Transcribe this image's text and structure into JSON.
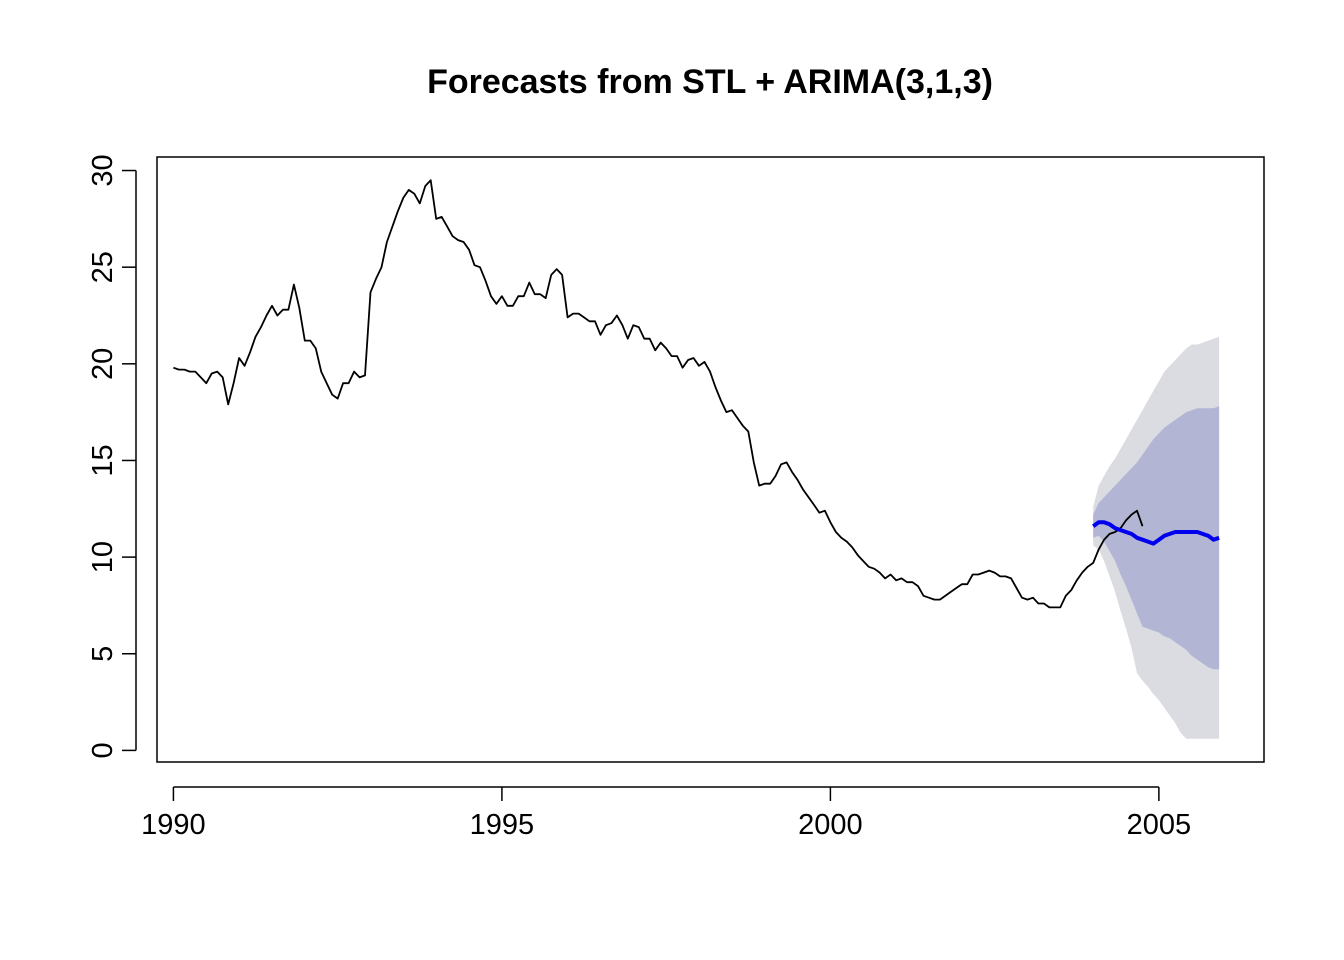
{
  "chart_data": {
    "type": "line",
    "title": "Forecasts from STL +  ARIMA(3,1,3)",
    "xlabel": "",
    "ylabel": "",
    "xlim": [
      1989.75,
      2006.6
    ],
    "ylim": [
      -0.6,
      30.7
    ],
    "x_ticks": [
      1990,
      1995,
      2000,
      2005
    ],
    "y_ticks": [
      0,
      5,
      10,
      15,
      20,
      25,
      30
    ],
    "grid": false,
    "start": 1990.0,
    "frequency": 12,
    "series": [
      {
        "values": [
          19.8,
          19.7,
          19.7,
          19.6,
          19.6,
          19.3,
          19.0,
          19.5,
          19.6,
          19.3,
          17.9,
          19.0,
          20.3,
          19.9,
          20.6,
          21.4,
          21.9,
          22.5,
          23.0,
          22.5,
          22.8,
          22.8,
          24.1,
          22.9,
          21.2,
          21.2,
          20.8,
          19.6,
          19.0,
          18.4,
          18.2,
          19.0,
          19.0,
          19.6,
          19.3,
          19.4,
          23.7,
          24.4,
          25.0,
          26.3,
          27.1,
          27.9,
          28.6,
          29.0,
          28.8,
          28.3,
          29.2,
          29.5,
          27.5,
          27.6,
          27.1,
          26.6,
          26.4,
          26.3,
          25.9,
          25.1,
          25.0,
          24.3,
          23.5,
          23.1,
          23.5,
          23.0,
          23.0,
          23.5,
          23.5,
          24.2,
          23.6,
          23.6,
          23.4,
          24.6,
          24.9,
          24.6,
          22.4,
          22.6,
          22.6,
          22.4,
          22.2,
          22.2,
          21.5,
          22.0,
          22.1,
          22.5,
          22.0,
          21.3,
          22.0,
          21.9,
          21.3,
          21.3,
          20.7,
          21.1,
          20.8,
          20.4,
          20.4,
          19.8,
          20.2,
          20.3,
          19.9,
          20.1,
          19.6,
          18.8,
          18.1,
          17.5,
          17.6,
          17.2,
          16.8,
          16.5,
          14.9,
          13.7,
          13.8,
          13.8,
          14.2,
          14.8,
          14.9,
          14.4,
          14.0,
          13.5,
          13.1,
          12.7,
          12.3,
          12.4,
          11.8,
          11.3,
          11.0,
          10.8,
          10.5,
          10.1,
          9.8,
          9.5,
          9.4,
          9.2,
          8.9,
          9.1,
          8.8,
          8.9,
          8.7,
          8.7,
          8.5,
          8.0,
          7.9,
          7.8,
          7.8,
          8.0,
          8.2,
          8.4,
          8.6,
          8.6,
          9.1,
          9.1,
          9.2,
          9.3,
          9.2,
          9.0,
          9.0,
          8.9,
          8.4,
          7.9,
          7.8,
          7.9,
          7.6,
          7.6,
          7.4,
          7.4,
          7.4,
          8.0,
          8.3,
          8.8,
          9.2,
          9.5,
          9.7,
          10.4,
          10.9,
          11.2,
          11.3,
          11.5,
          11.9,
          12.2,
          12.4,
          11.6
        ],
        "color": "#000000"
      },
      {
        "name": "forecast",
        "start": 2004.0,
        "values": [
          11.6,
          11.8,
          11.8,
          11.7,
          11.5,
          11.4,
          11.3,
          11.2,
          11.0,
          10.9,
          10.8,
          10.7,
          10.9,
          11.1,
          11.2,
          11.3,
          11.3,
          11.3,
          11.3,
          11.3,
          11.2,
          11.1,
          10.9,
          11.0
        ],
        "color": "#0000ee"
      }
    ],
    "intervals": [
      {
        "level": "95",
        "color": "#dbdbe2",
        "lower": [
          10.6,
          10.4,
          9.8,
          9.0,
          8.2,
          7.2,
          6.3,
          5.3,
          4.0,
          3.6,
          3.3,
          2.9,
          2.6,
          2.2,
          1.8,
          1.4,
          0.9,
          0.6,
          0.6,
          0.6,
          0.6,
          0.6,
          0.6,
          0.6
        ],
        "upper": [
          12.6,
          13.7,
          14.2,
          14.7,
          15.1,
          15.6,
          16.1,
          16.6,
          17.1,
          17.6,
          18.1,
          18.6,
          19.1,
          19.6,
          19.9,
          20.2,
          20.5,
          20.8,
          21.0,
          21.0,
          21.1,
          21.2,
          21.3,
          21.4
        ]
      },
      {
        "level": "80",
        "color": "#b2b5d3",
        "lower": [
          11.0,
          11.1,
          10.8,
          10.3,
          9.8,
          9.1,
          8.5,
          7.8,
          7.1,
          6.4,
          6.3,
          6.2,
          6.1,
          5.9,
          5.8,
          5.6,
          5.4,
          5.2,
          4.9,
          4.7,
          4.5,
          4.3,
          4.2,
          4.2
        ],
        "upper": [
          12.2,
          12.8,
          13.1,
          13.4,
          13.7,
          14.0,
          14.3,
          14.6,
          14.9,
          15.3,
          15.7,
          16.1,
          16.4,
          16.7,
          16.9,
          17.1,
          17.3,
          17.5,
          17.6,
          17.7,
          17.7,
          17.7,
          17.7,
          17.8
        ]
      }
    ]
  }
}
